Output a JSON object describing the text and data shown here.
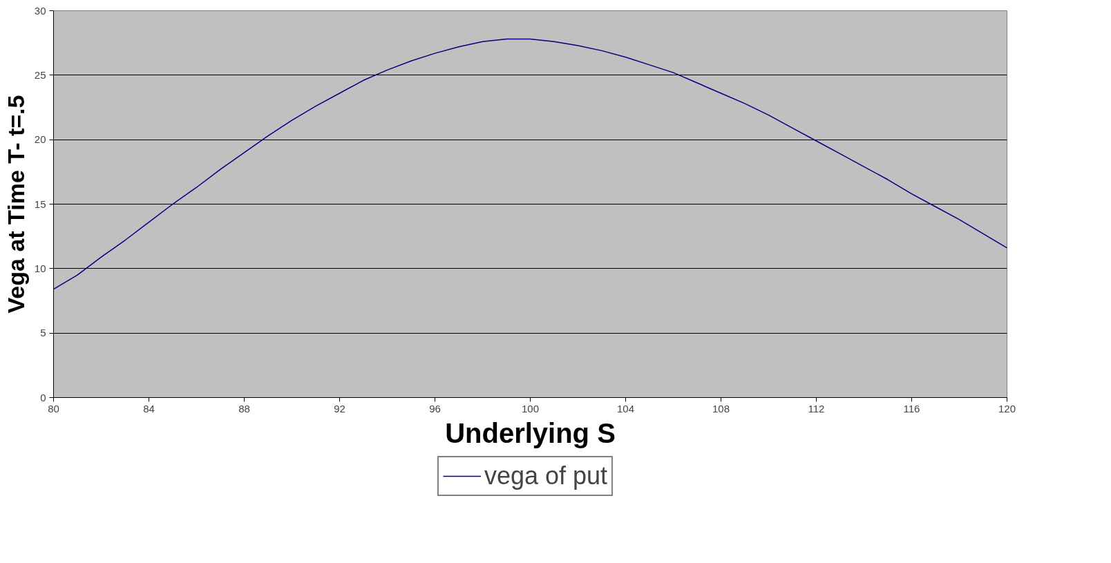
{
  "chart_data": {
    "type": "line",
    "xlabel": "Underlying S",
    "ylabel": "Vega at Time T- t=.5",
    "x": [
      80,
      81,
      82,
      83,
      84,
      85,
      86,
      87,
      88,
      89,
      90,
      91,
      92,
      93,
      94,
      95,
      96,
      97,
      98,
      99,
      100,
      101,
      102,
      103,
      104,
      105,
      106,
      107,
      108,
      109,
      110,
      111,
      112,
      113,
      114,
      115,
      116,
      117,
      118,
      119,
      120
    ],
    "series": [
      {
        "name": "vega of put",
        "color": "#000080",
        "values": [
          8.4,
          9.5,
          10.9,
          12.2,
          13.6,
          15.0,
          16.3,
          17.7,
          19.0,
          20.3,
          21.5,
          22.6,
          23.6,
          24.6,
          25.4,
          26.1,
          26.7,
          27.2,
          27.6,
          27.8,
          27.8,
          27.6,
          27.3,
          26.9,
          26.4,
          25.8,
          25.2,
          24.4,
          23.6,
          22.8,
          21.9,
          20.9,
          19.9,
          18.9,
          17.9,
          16.9,
          15.8,
          14.8,
          13.8,
          12.7,
          11.6
        ]
      }
    ],
    "xlim": [
      80,
      120
    ],
    "xticks": [
      80,
      84,
      88,
      92,
      96,
      100,
      104,
      108,
      112,
      116,
      120
    ],
    "ylim": [
      0,
      30
    ],
    "yticks": [
      0,
      5,
      10,
      15,
      20,
      25,
      30
    ],
    "grid": "y",
    "legend": "bottom",
    "marker": "none",
    "line_style": "solid"
  }
}
